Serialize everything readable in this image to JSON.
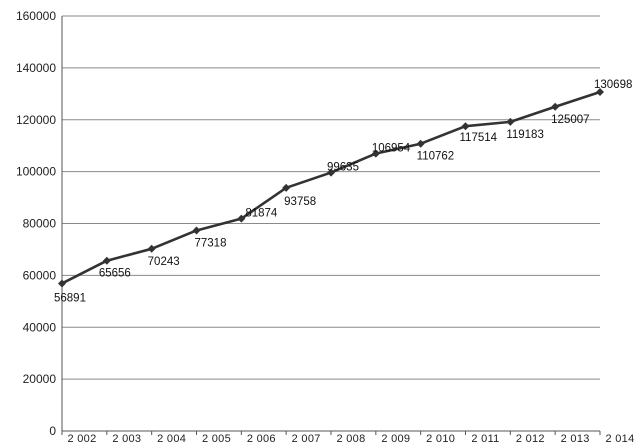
{
  "chart_data": {
    "type": "line",
    "title": "",
    "xlabel": "",
    "ylabel": "",
    "categories": [
      "2002",
      "2003",
      "2004",
      "2005",
      "2006",
      "2007",
      "2008",
      "2009",
      "2010",
      "2011",
      "2012",
      "2013",
      "2014"
    ],
    "category_labels": [
      "2 002",
      "2 003",
      "2 004",
      "2 005",
      "2 006",
      "2 007",
      "2 008",
      "2 009",
      "2 010",
      "2 011",
      "2 012",
      "2 013",
      "2 014"
    ],
    "values": [
      56891,
      65656,
      70243,
      77318,
      81874,
      93758,
      99635,
      106954,
      110762,
      117514,
      119183,
      125007,
      130698
    ],
    "ylim": [
      0,
      160000
    ],
    "yticks": [
      0,
      20000,
      40000,
      60000,
      80000,
      100000,
      120000,
      140000,
      160000
    ],
    "grid": true,
    "legend": "none",
    "colors": {
      "line": "#333333",
      "grid": "#8a8a8a",
      "axis": "#555555"
    }
  }
}
